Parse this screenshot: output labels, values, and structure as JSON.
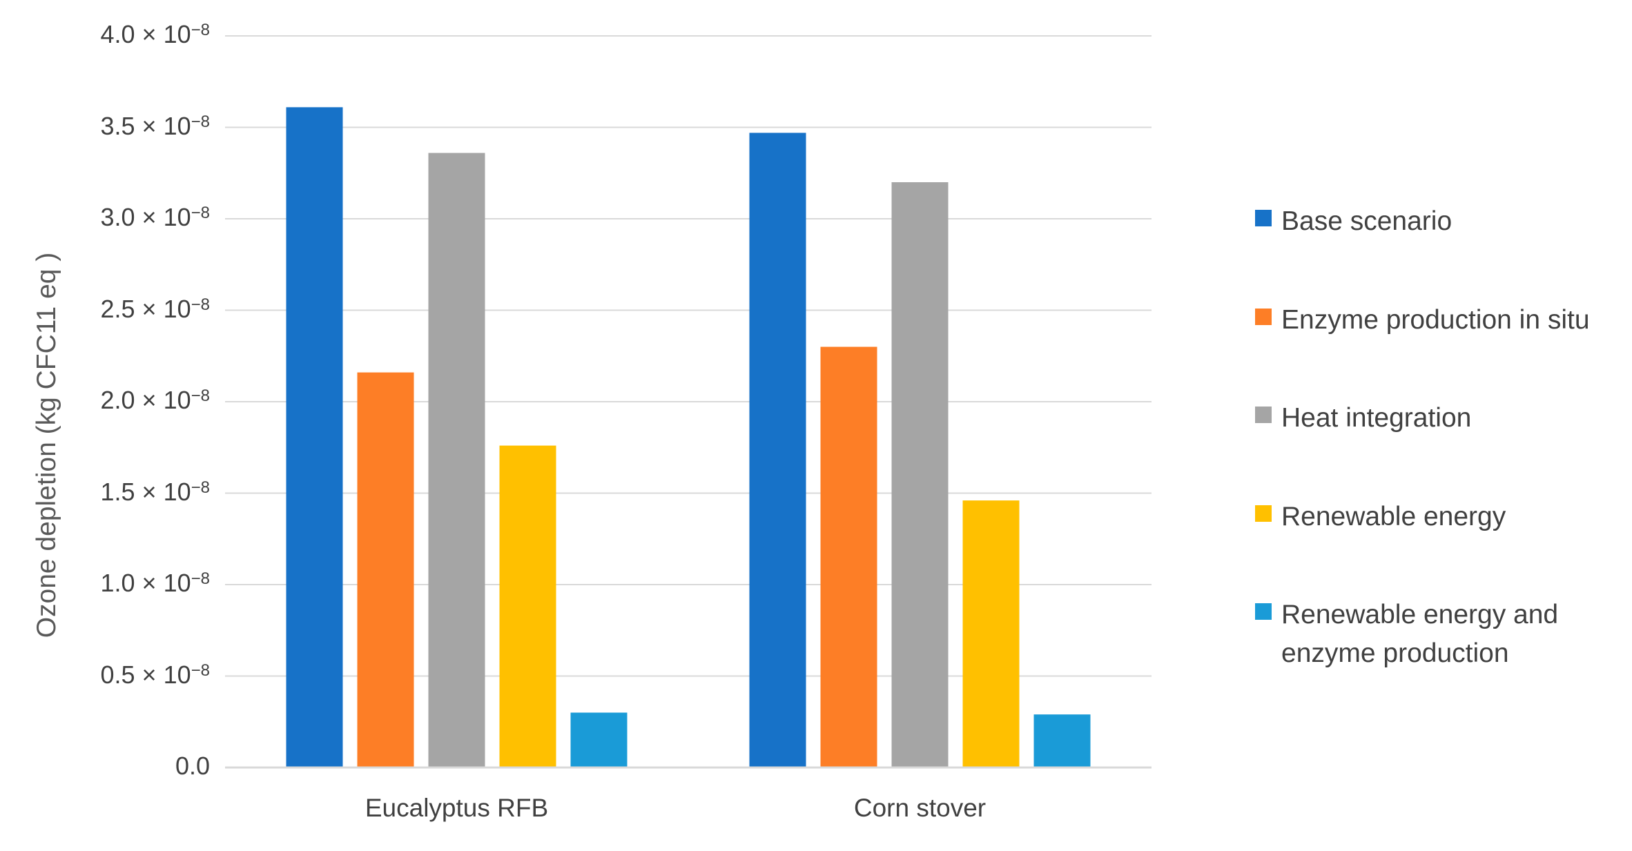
{
  "chart_data": {
    "type": "bar",
    "ylabel": "Ozone depletion (kg CFC11 eq )",
    "xlabel": "",
    "ylim": [
      0,
      4.0
    ],
    "y_unit_exponent": "−8",
    "y_ticks": [
      {
        "value": 0.0,
        "mantissa": "0.0",
        "exp": ""
      },
      {
        "value": 0.5,
        "mantissa": "0.5 × 10",
        "exp": "−8"
      },
      {
        "value": 1.0,
        "mantissa": "1.0 × 10",
        "exp": "−8"
      },
      {
        "value": 1.5,
        "mantissa": "1.5 × 10",
        "exp": "−8"
      },
      {
        "value": 2.0,
        "mantissa": "2.0 × 10",
        "exp": "−8"
      },
      {
        "value": 2.5,
        "mantissa": "2.5 × 10",
        "exp": "−8"
      },
      {
        "value": 3.0,
        "mantissa": "3.0 × 10",
        "exp": "−8"
      },
      {
        "value": 3.5,
        "mantissa": "3.5 × 10",
        "exp": "−8"
      },
      {
        "value": 4.0,
        "mantissa": "4.0 × 10",
        "exp": "−8"
      }
    ],
    "grid": true,
    "legend_position": "right",
    "categories": [
      "Eucalyptus RFB",
      "Corn stover"
    ],
    "series": [
      {
        "name": "Base scenario",
        "color": "#1772C8",
        "values": [
          3.61,
          3.47
        ]
      },
      {
        "name": "Enzyme production in situ",
        "color": "#FD7E26",
        "values": [
          2.16,
          2.3
        ]
      },
      {
        "name": "Heat integration",
        "color": "#A5A5A5",
        "values": [
          3.36,
          3.2
        ]
      },
      {
        "name": "Renewable energy",
        "color": "#FFC000",
        "values": [
          1.76,
          1.46
        ]
      },
      {
        "name": "Renewable energy and enzyme production",
        "color": "#1A9BD7",
        "values": [
          0.3,
          0.29
        ]
      }
    ]
  }
}
